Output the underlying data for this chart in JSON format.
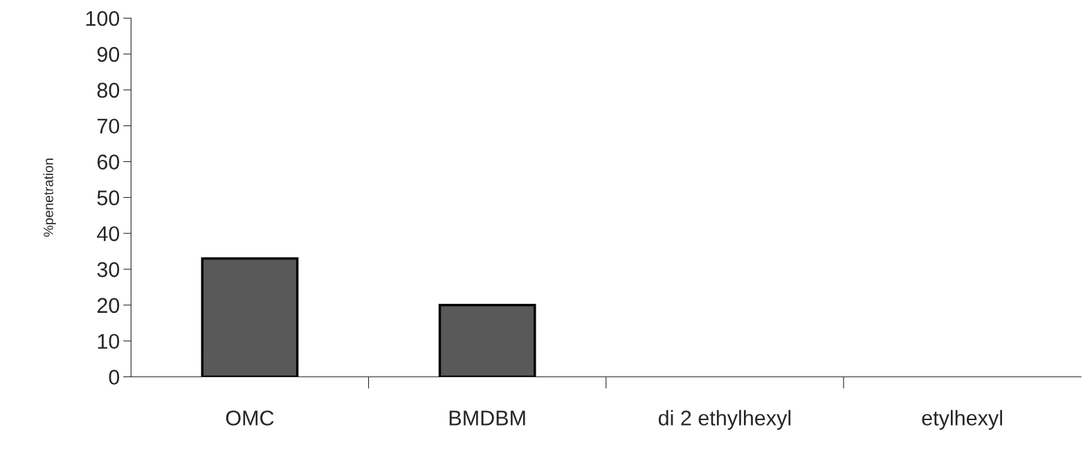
{
  "chart_data": {
    "type": "bar",
    "ylabel": "%penetration",
    "categories": [
      "OMC",
      "BMDBM",
      "di 2 ethylhexyl",
      "etylhexyl"
    ],
    "values": [
      33,
      20,
      null,
      null
    ],
    "color": "#595959",
    "ylim": [
      0,
      100
    ],
    "yticks": [
      0,
      10,
      20,
      30,
      40,
      50,
      60,
      70,
      80,
      90,
      100
    ],
    "grid": false
  }
}
